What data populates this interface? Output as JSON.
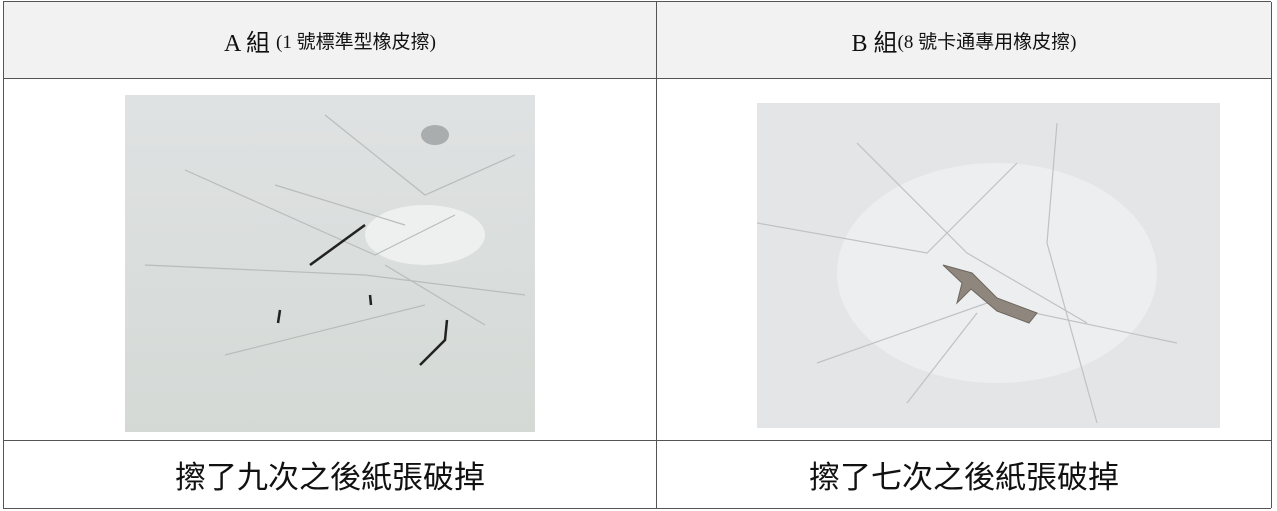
{
  "table": {
    "header": [
      {
        "label": "A 組",
        "note": "(1 號標準型橡皮擦)"
      },
      {
        "label": "B 組",
        "note": "(8 號卡通專用橡皮擦)"
      }
    ],
    "captions": [
      "擦了九次之後紙張破掉",
      "擦了七次之後紙張破掉"
    ]
  }
}
